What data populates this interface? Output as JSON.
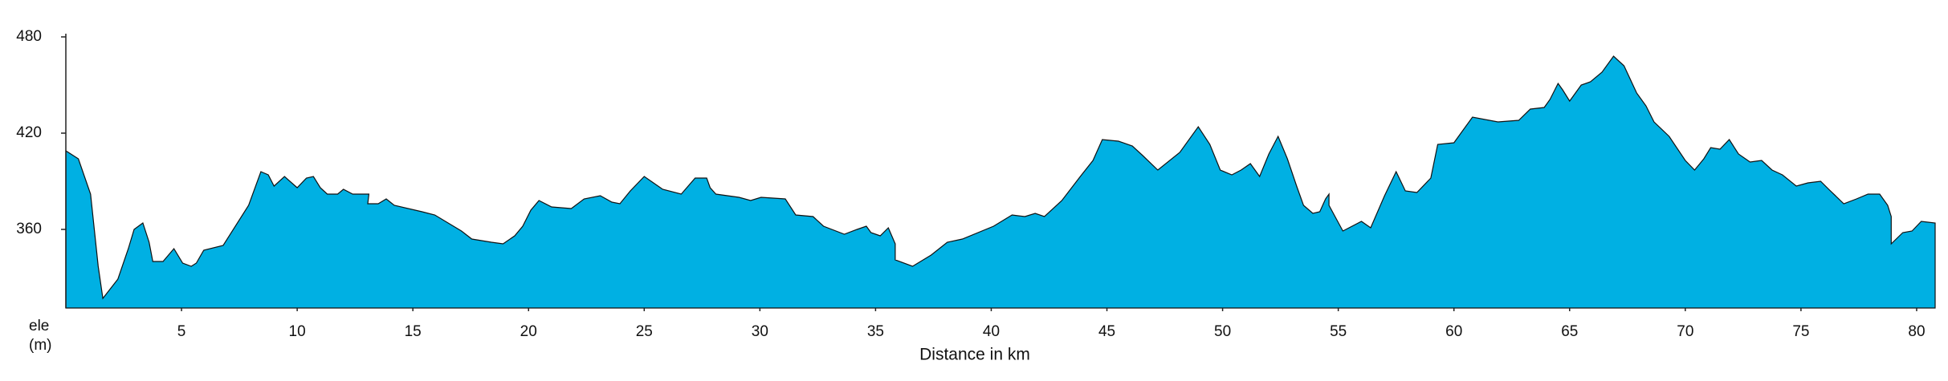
{
  "chart_data": {
    "type": "area",
    "x_label": "Distance in km",
    "y_label": [
      "ele",
      "(m)"
    ],
    "color": "#00b0e3",
    "xlim": [
      0,
      80.8
    ],
    "ylim": [
      311,
      480
    ],
    "xticks": [
      5,
      10,
      15,
      20,
      25,
      30,
      35,
      40,
      45,
      50,
      55,
      60,
      65,
      70,
      75,
      80
    ],
    "yticks": [
      360,
      420,
      480
    ],
    "x": [
      0,
      0.54,
      1.07,
      1.4,
      1.6,
      2.25,
      2.7,
      2.95,
      3.33,
      3.6,
      3.76,
      4.2,
      4.67,
      5.05,
      5.42,
      5.64,
      5.96,
      6.8,
      7.9,
      8.43,
      8.75,
      9.0,
      9.45,
      10.0,
      10.4,
      10.7,
      11.0,
      11.3,
      11.75,
      12.0,
      12.4,
      13.1,
      13.05,
      13.5,
      13.85,
      14.2,
      15.4,
      15.95,
      17.1,
      17.55,
      18.4,
      18.9,
      19.4,
      19.75,
      20.1,
      20.45,
      21.0,
      21.85,
      22.4,
      23.1,
      23.6,
      23.95,
      24.4,
      25.0,
      25.4,
      25.8,
      26.6,
      27.2,
      27.7,
      27.85,
      28.1,
      29.1,
      29.6,
      30.05,
      31.1,
      31.55,
      32.3,
      32.75,
      33.65,
      34.2,
      34.6,
      34.8,
      35.2,
      35.55,
      35.85,
      35.85,
      36.6,
      37.4,
      38.1,
      38.75,
      40.1,
      40.9,
      41.45,
      41.9,
      42.3,
      43.05,
      43.85,
      44.4,
      44.8,
      45.5,
      46.1,
      46.55,
      47.2,
      48.15,
      48.95,
      49.45,
      49.9,
      50.4,
      50.8,
      51.2,
      51.6,
      52.0,
      52.4,
      52.8,
      53.2,
      53.5,
      53.9,
      54.2,
      54.45,
      54.6,
      54.6,
      55.2,
      56.0,
      56.4,
      57.0,
      57.5,
      57.9,
      58.4,
      59.0,
      59.3,
      60.0,
      60.35,
      60.8,
      61.9,
      62.8,
      63.3,
      63.9,
      64.15,
      64.5,
      64.7,
      65.0,
      65.5,
      65.9,
      66.4,
      66.9,
      67.35,
      67.9,
      68.3,
      68.65,
      69.3,
      70.0,
      70.4,
      70.8,
      71.1,
      71.5,
      71.9,
      72.3,
      72.8,
      73.3,
      73.75,
      74.2,
      74.8,
      75.3,
      75.85,
      76.2,
      76.85,
      77.4,
      77.9,
      78.4,
      78.75,
      78.9,
      78.9,
      79.4,
      79.8,
      80.2,
      80.8
    ],
    "values": [
      409,
      404,
      382,
      337,
      317,
      329,
      348,
      360,
      364,
      352,
      340,
      340,
      348,
      339,
      337,
      339,
      347,
      350,
      375,
      396,
      394,
      387,
      393,
      386,
      392,
      393,
      386,
      382,
      382,
      385,
      382,
      382,
      376,
      376,
      379,
      375,
      371,
      369,
      359,
      354,
      352,
      351,
      356,
      362,
      372,
      378,
      374,
      373,
      379,
      381,
      377,
      376,
      384,
      393,
      389,
      385,
      382,
      392,
      392,
      386,
      382,
      380,
      378,
      380,
      379,
      369,
      368,
      362,
      357,
      360,
      362,
      358,
      356,
      361,
      351,
      341,
      337,
      344,
      352,
      354,
      362,
      369,
      368,
      370,
      368,
      378,
      393,
      403,
      416,
      415,
      412,
      406,
      397,
      408,
      424,
      413,
      397,
      394,
      397,
      401,
      393,
      407,
      418,
      404,
      387,
      375,
      370,
      371,
      379,
      382,
      375,
      359,
      365,
      361,
      381,
      396,
      384,
      383,
      392,
      413,
      414,
      421,
      430,
      427,
      428,
      435,
      436,
      441,
      451,
      447,
      440,
      450,
      452,
      458,
      468,
      462,
      445,
      437,
      427,
      418,
      403,
      397,
      404,
      411,
      410,
      416,
      407,
      402,
      403,
      397,
      394,
      387,
      389,
      390,
      385,
      376,
      379,
      382,
      382,
      375,
      368,
      351,
      358,
      359,
      365,
      364
    ]
  }
}
